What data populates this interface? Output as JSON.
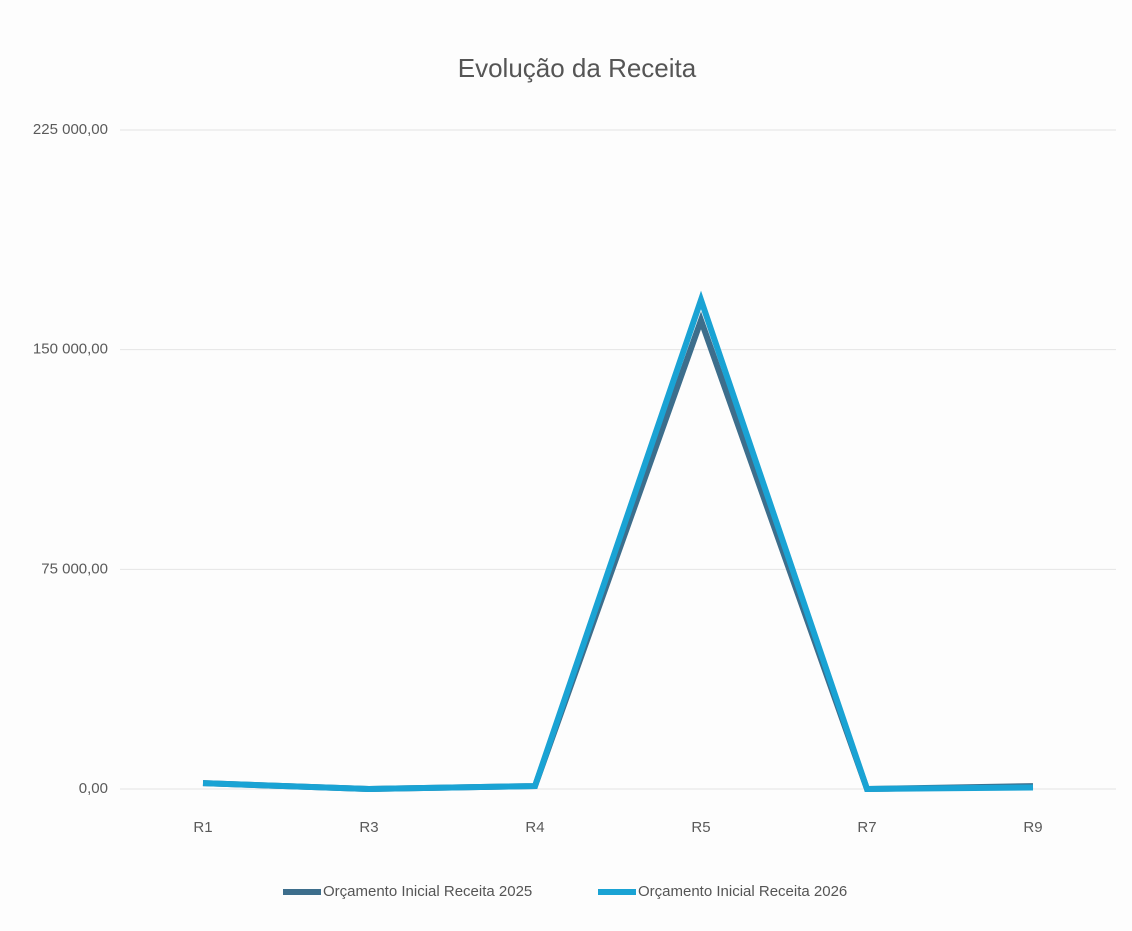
{
  "chart_data": {
    "type": "line",
    "title": "Evolução da Receita",
    "categories": [
      "R1",
      "R3",
      "R4",
      "R5",
      "R7",
      "R9"
    ],
    "series": [
      {
        "name": "Orçamento Inicial  Receita 2025",
        "color": "#3d6e8c",
        "values": [
          2000,
          0,
          1000,
          160000,
          0,
          1000
        ]
      },
      {
        "name": "Orçamento Inicial Receita 2026",
        "color": "#1aa3d4",
        "values": [
          2000,
          0,
          1000,
          167000,
          0,
          500
        ]
      }
    ],
    "ylim": [
      0,
      225000
    ],
    "yticks": [
      {
        "value": 0,
        "label": "0,00"
      },
      {
        "value": 75000,
        "label": "75 000,00"
      },
      {
        "value": 150000,
        "label": "150 000,00"
      },
      {
        "value": 225000,
        "label": "225 000,00"
      }
    ],
    "grid": true,
    "legend": "bottom"
  }
}
